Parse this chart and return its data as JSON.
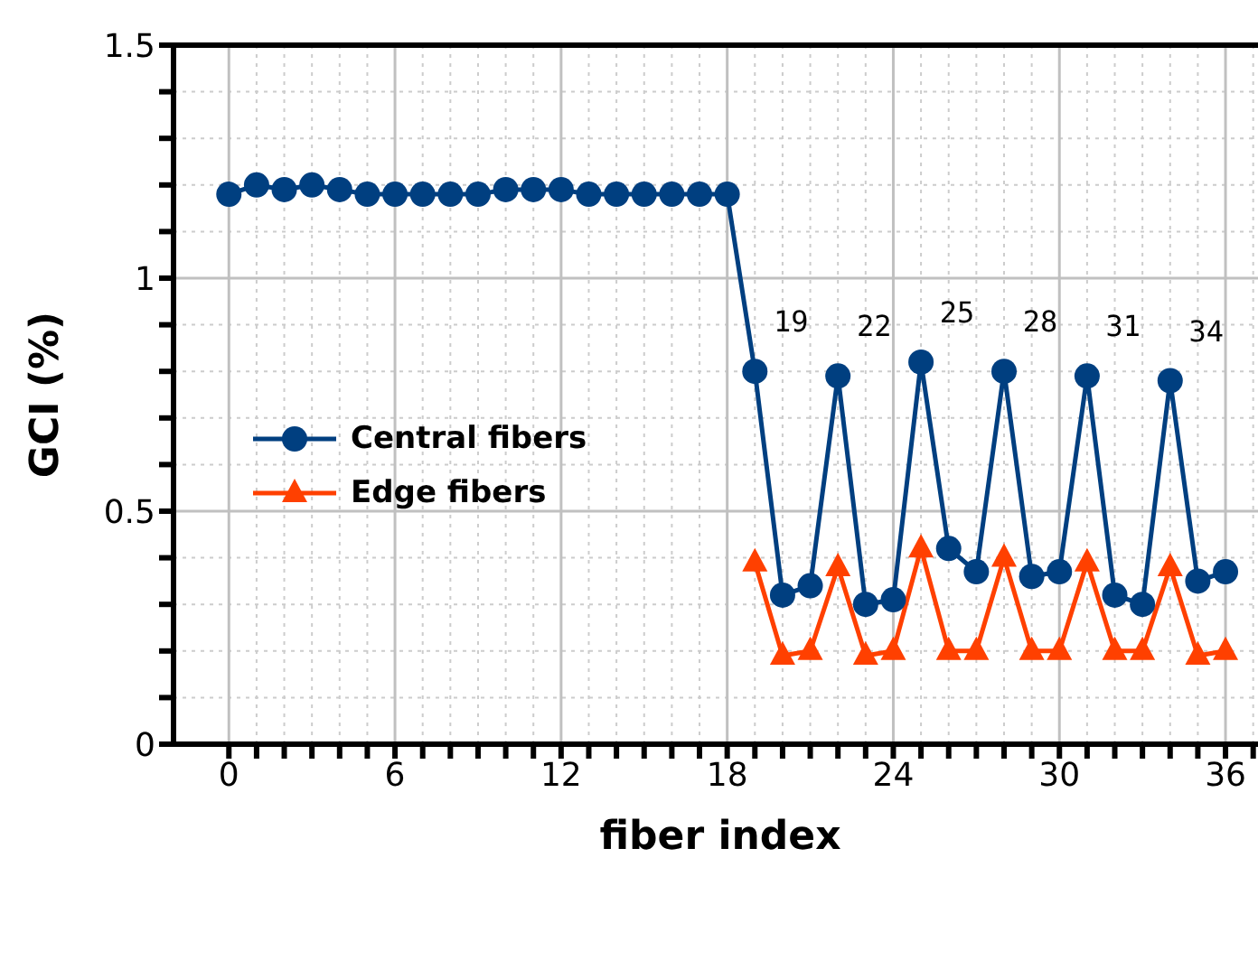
{
  "chart_data": {
    "type": "line",
    "xlabel": "fiber index",
    "ylabel": "GCI (%)",
    "x": [
      0,
      1,
      2,
      3,
      4,
      5,
      6,
      7,
      8,
      9,
      10,
      11,
      12,
      13,
      14,
      15,
      16,
      17,
      18,
      19,
      20,
      21,
      22,
      23,
      24,
      25,
      26,
      27,
      28,
      29,
      30,
      31,
      32,
      33,
      34,
      35,
      36
    ],
    "series": [
      {
        "name": "Central fibers",
        "color": "#003f80",
        "marker": "circle",
        "values": [
          1.18,
          1.2,
          1.19,
          1.2,
          1.19,
          1.18,
          1.18,
          1.18,
          1.18,
          1.18,
          1.19,
          1.19,
          1.19,
          1.18,
          1.18,
          1.18,
          1.18,
          1.18,
          1.18,
          0.8,
          0.32,
          0.34,
          0.79,
          0.3,
          0.31,
          0.82,
          0.42,
          0.37,
          0.8,
          0.36,
          0.37,
          0.79,
          0.32,
          0.3,
          0.78,
          0.35,
          0.37
        ]
      },
      {
        "name": "Edge fibers",
        "color": "#ff4000",
        "marker": "triangle",
        "values": [
          null,
          null,
          null,
          null,
          null,
          null,
          null,
          null,
          null,
          null,
          null,
          null,
          null,
          null,
          null,
          null,
          null,
          null,
          null,
          0.39,
          0.19,
          0.2,
          0.38,
          0.19,
          0.2,
          0.42,
          0.2,
          0.2,
          0.4,
          0.2,
          0.2,
          0.39,
          0.2,
          0.2,
          0.38,
          0.19,
          0.2
        ]
      }
    ],
    "xlim": [
      -2,
      37.5
    ],
    "xticks": [
      0,
      {
        "value": 1,
        "label": null
      },
      {
        "value": 2,
        "label": null
      },
      {
        "value": 3,
        "label": null
      },
      {
        "value": 4,
        "label": null
      },
      {
        "value": 5,
        "label": null
      },
      6,
      {
        "value": 7,
        "label": null
      },
      {
        "value": 8,
        "label": null
      },
      {
        "value": 9,
        "label": null
      },
      {
        "value": 10,
        "label": null
      },
      {
        "value": 11,
        "label": null
      },
      12,
      {
        "value": 13,
        "label": null
      },
      {
        "value": 14,
        "label": null
      },
      {
        "value": 15,
        "label": null
      },
      {
        "value": 16,
        "label": null
      },
      {
        "value": 17,
        "label": null
      },
      18,
      {
        "value": 19,
        "label": null
      },
      {
        "value": 20,
        "label": null
      },
      {
        "value": 21,
        "label": null
      },
      {
        "value": 22,
        "label": null
      },
      {
        "value": 23,
        "label": null
      },
      24,
      {
        "value": 25,
        "label": null
      },
      {
        "value": 26,
        "label": null
      },
      {
        "value": 27,
        "label": null
      },
      {
        "value": 28,
        "label": null
      },
      {
        "value": 29,
        "label": null
      },
      30,
      {
        "value": 31,
        "label": null
      },
      {
        "value": 32,
        "label": null
      },
      {
        "value": 33,
        "label": null
      },
      {
        "value": 34,
        "label": null
      },
      {
        "value": 35,
        "label": null
      },
      36,
      {
        "value": 37,
        "label": null
      }
    ],
    "ylim": [
      0,
      1.5
    ],
    "yticks": [
      0,
      {
        "value": 0.1,
        "label": null
      },
      {
        "value": 0.2,
        "label": null
      },
      {
        "value": 0.3,
        "label": null
      },
      {
        "value": 0.4,
        "label": null
      },
      {
        "value": 0.5,
        "label": "0.5"
      },
      {
        "value": 0.6,
        "label": null
      },
      {
        "value": 0.7,
        "label": null
      },
      {
        "value": 0.8,
        "label": null
      },
      {
        "value": 0.9,
        "label": null
      },
      1,
      {
        "value": 1.1,
        "label": null
      },
      {
        "value": 1.2,
        "label": null
      },
      {
        "value": 1.3,
        "label": null
      },
      {
        "value": 1.4,
        "label": null
      },
      {
        "value": 1.5,
        "label": "1.5"
      }
    ],
    "grid": true,
    "legend": "left",
    "annotations": [
      {
        "text": "19",
        "x": 19,
        "y": 0.8
      },
      {
        "text": "22",
        "x": 22,
        "y": 0.79
      },
      {
        "text": "25",
        "x": 25,
        "y": 0.82
      },
      {
        "text": "28",
        "x": 28,
        "y": 0.8
      },
      {
        "text": "31",
        "x": 31,
        "y": 0.79
      },
      {
        "text": "34",
        "x": 34,
        "y": 0.78
      }
    ]
  }
}
